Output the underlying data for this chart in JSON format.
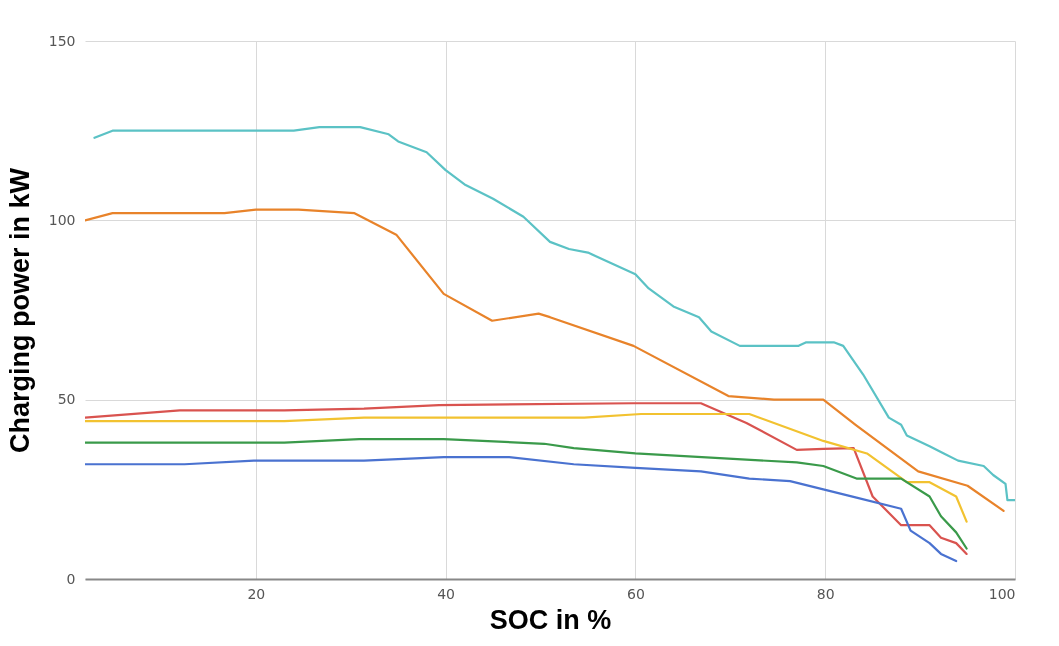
{
  "chart_data": {
    "type": "line",
    "xlabel": "SOC in %",
    "ylabel": "Charging power  in kW",
    "xlim": [
      2,
      100
    ],
    "xticks": [
      20,
      40,
      60,
      80,
      100
    ],
    "ylim": [
      0,
      150
    ],
    "yticks": [
      0,
      50,
      100,
      150
    ],
    "grid": true,
    "marker": "none",
    "line_style": "solid",
    "series": [
      {
        "color": "#5bc2c5",
        "x": [
          3,
          4.9,
          24,
          26.7,
          31,
          34,
          35,
          38,
          40,
          42,
          45,
          48.2,
          51,
          53,
          55,
          60,
          61.4,
          64,
          66.7,
          68,
          71,
          77.2,
          78,
          80.9,
          81.9,
          84,
          86.7,
          88,
          88.6,
          91,
          92.5,
          94,
          96.7,
          97.7,
          99,
          99.2,
          100
        ],
        "values": [
          123,
          125,
          125,
          126,
          126,
          124,
          122,
          119,
          114,
          110,
          106,
          101,
          94,
          92,
          91,
          85,
          81,
          76,
          73,
          69,
          65,
          65,
          66,
          66,
          65,
          57,
          45,
          43,
          40,
          37,
          35,
          33,
          31.5,
          29,
          26.5,
          22,
          22
        ]
      },
      {
        "color": "#e8832a",
        "x": [
          2,
          4.9,
          16.7,
          20,
          24.5,
          30.4,
          34.8,
          39.8,
          44.9,
          49.8,
          51,
          59.8,
          69.8,
          74.6,
          79.8,
          83.2,
          89.8,
          95,
          98.8
        ],
        "values": [
          100,
          102,
          102,
          103,
          103,
          102,
          96,
          79.5,
          72,
          74,
          73,
          65,
          51,
          50,
          50,
          43,
          30,
          26,
          19
        ]
      },
      {
        "color": "#d9534f",
        "x": [
          2,
          12,
          23,
          31.4,
          39.3,
          59.8,
          66.9,
          71.7,
          77,
          79.8,
          83,
          85,
          88,
          91,
          92.2,
          93.8,
          94.9
        ],
        "values": [
          45,
          47,
          47,
          47.5,
          48.5,
          49,
          49,
          43.5,
          36,
          36.3,
          36.5,
          23,
          15,
          15,
          11.5,
          10,
          7
        ]
      },
      {
        "color": "#f2c230",
        "x": [
          2,
          23,
          31.4,
          54.6,
          60.6,
          72,
          79.8,
          84.4,
          88.6,
          91,
          93.8,
          94.9
        ],
        "values": [
          44,
          44,
          45,
          45,
          46,
          46,
          38.5,
          35,
          27,
          27,
          23,
          16
        ]
      },
      {
        "color": "#3a9a4a",
        "x": [
          2,
          23,
          30.9,
          39.8,
          50.4,
          53.5,
          60,
          77,
          79.8,
          83.3,
          88,
          91,
          92.2,
          93.8,
          94.9
        ],
        "values": [
          38,
          38,
          39,
          39,
          37.7,
          36.5,
          35,
          32.5,
          31.5,
          28,
          28,
          23,
          17.5,
          13,
          8.5
        ]
      },
      {
        "color": "#4a72d0",
        "x": [
          2,
          12.5,
          19.8,
          31.4,
          39.8,
          46.7,
          53.5,
          60,
          66.9,
          72,
          76.3,
          79.8,
          83.3,
          88,
          89,
          91,
          92.2,
          93.8
        ],
        "values": [
          32,
          32,
          33,
          33,
          34,
          34,
          32,
          31,
          30,
          28,
          27.3,
          25,
          22.7,
          19.6,
          13.5,
          10,
          7,
          5
        ]
      }
    ]
  }
}
